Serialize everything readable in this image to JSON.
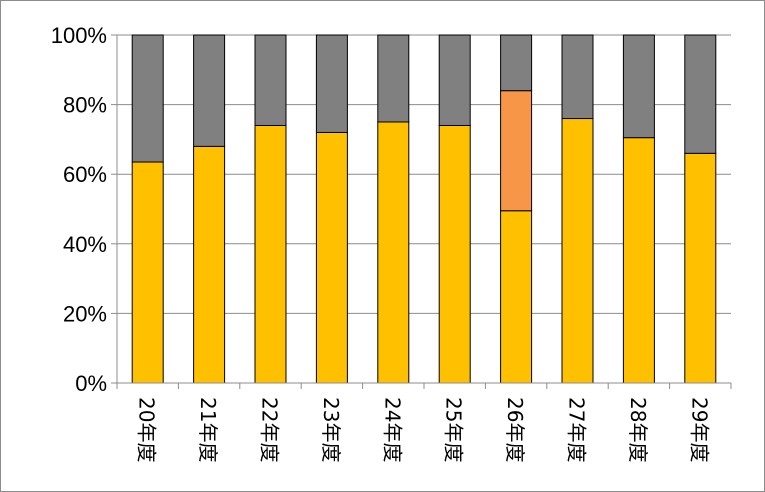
{
  "chart_data": {
    "type": "bar",
    "stacked": "percent",
    "categories": [
      "20年度",
      "21年度",
      "22年度",
      "23年度",
      "24年度",
      "25年度",
      "26年度",
      "27年度",
      "28年度",
      "29年度"
    ],
    "series": [
      {
        "values": [
          63.5,
          68,
          74,
          72,
          75,
          74,
          49.5,
          76,
          70.5,
          66
        ],
        "color": "#ffc000"
      },
      {
        "values": [
          0,
          0,
          0,
          0,
          0,
          0,
          34.5,
          0,
          0,
          0
        ],
        "color": "#f79646"
      },
      {
        "values": [
          36.5,
          32,
          26,
          28,
          25,
          26,
          16,
          24,
          29.5,
          34
        ],
        "color": "#808080"
      }
    ],
    "yticks": [
      "0%",
      "20%",
      "40%",
      "60%",
      "80%",
      "100%"
    ],
    "ylim": [
      0,
      100
    ],
    "grid": true,
    "legend": "none",
    "bar_outline": "#000000",
    "category_label_orientation": "vertical"
  }
}
